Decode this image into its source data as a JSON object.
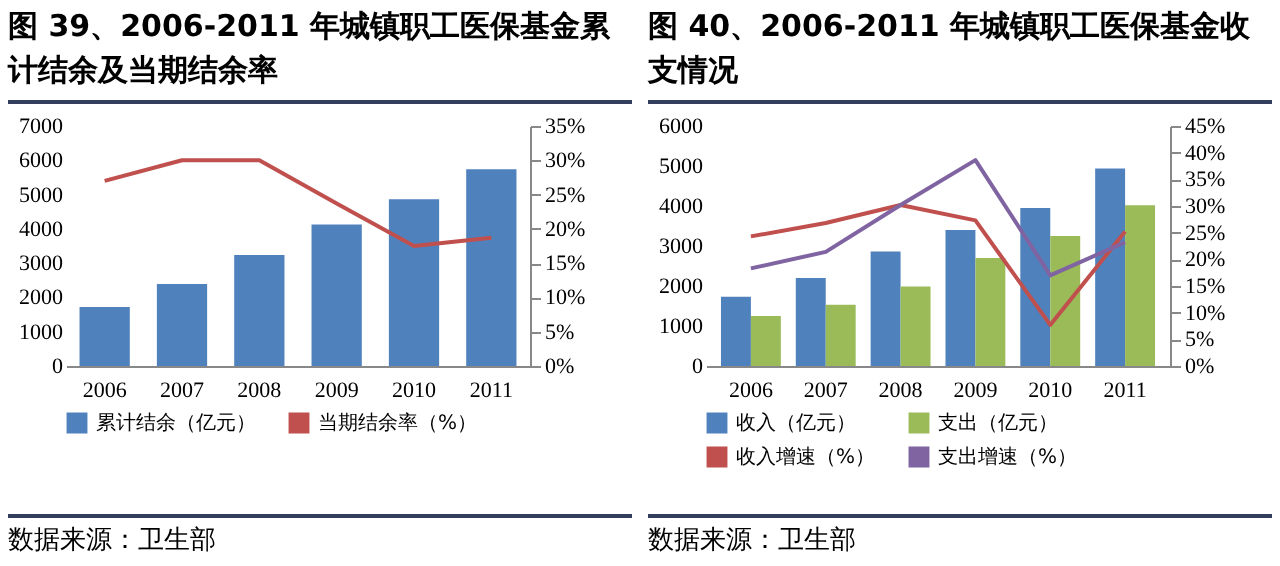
{
  "chart_data": [
    {
      "type": "bar",
      "title": "图 39、2006-2011 年城镇职工医保基金累计结余及当期结余率",
      "categories": [
        "2006",
        "2007",
        "2008",
        "2009",
        "2010",
        "2011"
      ],
      "series": [
        {
          "name": "累计结余（亿元）",
          "color": "#4f81bd",
          "values": [
            1720,
            2390,
            3240,
            4130,
            4860,
            5740
          ]
        },
        {
          "name": "当期结余率（%）",
          "type": "line",
          "axis": "y2",
          "color": "#c0504d",
          "values": [
            27.0,
            30.0,
            30.0,
            23.7,
            17.5,
            18.7
          ]
        }
      ],
      "ylim": [
        0,
        7000
      ],
      "yticks": [
        0,
        1000,
        2000,
        3000,
        4000,
        5000,
        6000,
        7000
      ],
      "y2lim": [
        0,
        35
      ],
      "y2ticks": [
        {
          "value": 0,
          "label": "0%"
        },
        {
          "value": 5,
          "label": "5%"
        },
        {
          "value": 10,
          "label": "10%"
        },
        {
          "value": 15,
          "label": "15%"
        },
        {
          "value": 20,
          "label": "20%"
        },
        {
          "value": 25,
          "label": "25%"
        },
        {
          "value": 30,
          "label": "30%"
        },
        {
          "value": 35,
          "label": "35%"
        }
      ],
      "legend": "bottom",
      "annotations": [
        "数据来源：卫生部"
      ]
    },
    {
      "type": "bar",
      "title": "图 40、2006-2011 年城镇职工医保基金收支情况",
      "categories": [
        "2006",
        "2007",
        "2008",
        "2009",
        "2010",
        "2011"
      ],
      "series": [
        {
          "name": "收入（亿元）",
          "color": "#4f81bd",
          "values": [
            1730,
            2200,
            2860,
            3400,
            3950,
            4940
          ]
        },
        {
          "name": "支出（亿元）",
          "color": "#9bbb59",
          "values": [
            1250,
            1530,
            1990,
            2700,
            3250,
            4020
          ]
        },
        {
          "name": "收入增速（%）",
          "type": "line",
          "axis": "y2",
          "color": "#c0504d",
          "values": [
            24.3,
            26.8,
            30.2,
            27.3,
            7.7,
            25.2
          ]
        },
        {
          "name": "支出增速（%）",
          "type": "line",
          "axis": "y2",
          "color": "#8064a2",
          "values": [
            18.3,
            21.4,
            30.2,
            38.6,
            17.0,
            23.2
          ]
        }
      ],
      "ylim": [
        0,
        6000
      ],
      "yticks": [
        0,
        1000,
        2000,
        3000,
        4000,
        5000,
        6000
      ],
      "y2lim": [
        0,
        45
      ],
      "y2ticks": [
        {
          "value": 0,
          "label": "0%"
        },
        {
          "value": 5,
          "label": "5%"
        },
        {
          "value": 10,
          "label": "10%"
        },
        {
          "value": 15,
          "label": "15%"
        },
        {
          "value": 20,
          "label": "20%"
        },
        {
          "value": 25,
          "label": "25%"
        },
        {
          "value": 30,
          "label": "30%"
        },
        {
          "value": 35,
          "label": "35%"
        },
        {
          "value": 40,
          "label": "40%"
        },
        {
          "value": 45,
          "label": "45%"
        }
      ],
      "legend": "bottom",
      "annotations": [
        "数据来源：卫生部"
      ]
    }
  ]
}
